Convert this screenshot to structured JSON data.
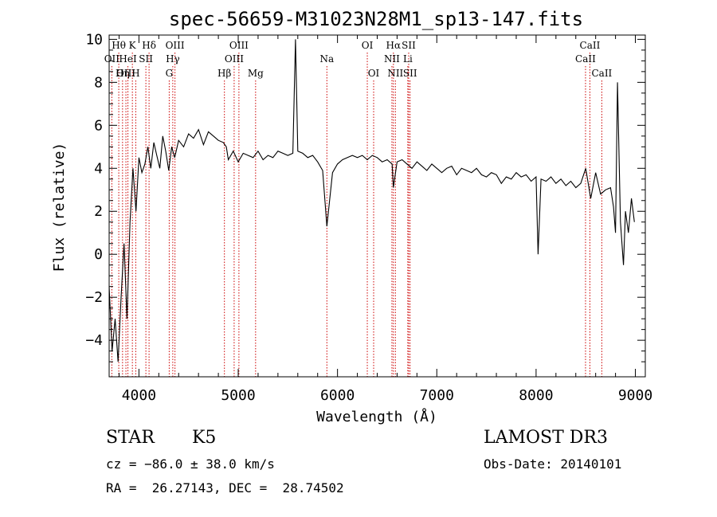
{
  "chart_data": {
    "type": "line",
    "title": "spec-56659-M31023N28M1_sp13-147.fits",
    "xlabel": "Wavelength (Å)",
    "ylabel": "Flux (relative)",
    "xlim": [
      3700,
      9100
    ],
    "ylim": [
      -5.7,
      10.2
    ],
    "xticks": [
      "4000",
      "5000",
      "6000",
      "7000",
      "8000",
      "9000"
    ],
    "yticks": [
      "−4",
      "−2",
      "0",
      "2",
      "4",
      "6",
      "8",
      "10"
    ],
    "series": [
      {
        "x": [
          3700,
          3730,
          3760,
          3790,
          3820,
          3850,
          3880,
          3910,
          3940,
          3970,
          4000,
          4030,
          4060,
          4090,
          4120,
          4150,
          4180,
          4210,
          4240,
          4270,
          4300,
          4330,
          4360,
          4400,
          4450,
          4500,
          4550,
          4600,
          4650,
          4700,
          4750,
          4800,
          4850,
          4880,
          4900,
          4950,
          5000,
          5050,
          5100,
          5150,
          5200,
          5250,
          5300,
          5350,
          5400,
          5450,
          5500,
          5550,
          5577,
          5600,
          5650,
          5700,
          5750,
          5800,
          5850,
          5893,
          5950,
          6000,
          6050,
          6100,
          6150,
          6200,
          6250,
          6300,
          6350,
          6400,
          6450,
          6500,
          6550,
          6563,
          6600,
          6650,
          6700,
          6750,
          6800,
          6850,
          6900,
          6950,
          7000,
          7050,
          7100,
          7150,
          7200,
          7250,
          7300,
          7350,
          7400,
          7450,
          7500,
          7550,
          7600,
          7650,
          7700,
          7750,
          7800,
          7850,
          7900,
          7950,
          8000,
          8020,
          8050,
          8100,
          8150,
          8200,
          8250,
          8300,
          8350,
          8400,
          8450,
          8500,
          8550,
          8600,
          8650,
          8700,
          8750,
          8780,
          8800,
          8820,
          8850,
          8880,
          8900,
          8930,
          8960,
          8990
        ],
        "y": [
          -1.5,
          -4.5,
          -3.0,
          -5.0,
          -2.0,
          0.5,
          -3.0,
          1.5,
          4.0,
          2.0,
          4.5,
          3.8,
          4.2,
          5.0,
          4.0,
          5.2,
          4.6,
          4.0,
          5.5,
          4.8,
          3.9,
          5.0,
          4.5,
          5.3,
          5.0,
          5.6,
          5.4,
          5.8,
          5.1,
          5.7,
          5.5,
          5.3,
          5.2,
          5.0,
          4.4,
          4.8,
          4.3,
          4.7,
          4.6,
          4.5,
          4.8,
          4.4,
          4.6,
          4.5,
          4.8,
          4.7,
          4.6,
          4.7,
          10.0,
          4.8,
          4.7,
          4.5,
          4.6,
          4.3,
          3.9,
          1.3,
          3.8,
          4.2,
          4.4,
          4.5,
          4.6,
          4.5,
          4.6,
          4.4,
          4.6,
          4.5,
          4.3,
          4.4,
          4.2,
          3.1,
          4.3,
          4.4,
          4.2,
          4.0,
          4.3,
          4.1,
          3.9,
          4.2,
          4.0,
          3.8,
          4.0,
          4.1,
          3.7,
          4.0,
          3.9,
          3.8,
          4.0,
          3.7,
          3.6,
          3.8,
          3.7,
          3.3,
          3.6,
          3.5,
          3.8,
          3.6,
          3.7,
          3.4,
          3.6,
          0.0,
          3.5,
          3.4,
          3.6,
          3.3,
          3.5,
          3.2,
          3.4,
          3.1,
          3.3,
          4.0,
          2.6,
          3.8,
          2.8,
          3.0,
          3.1,
          2.2,
          1.0,
          8.0,
          1.5,
          -0.5,
          2.0,
          1.0,
          2.6,
          1.5
        ]
      }
    ],
    "lines": [
      {
        "label": "Hθ",
        "x": 3797,
        "row": 1
      },
      {
        "label": "OII",
        "x": 3727,
        "row": 2
      },
      {
        "label": "OIII",
        "x": 3869,
        "row": 3
      },
      {
        "label": "K",
        "x": 3934,
        "row": 1
      },
      {
        "label": "HeI",
        "x": 3889,
        "row": 2
      },
      {
        "label": "Hη",
        "x": 3835,
        "row": 3
      },
      {
        "label": "SII",
        "x": 4070,
        "row": 2
      },
      {
        "label": "H",
        "x": 3968,
        "row": 3
      },
      {
        "label": "Hδ",
        "x": 4102,
        "row": 1
      },
      {
        "label": "OIII",
        "x": 4363,
        "row": 1
      },
      {
        "label": "Hγ",
        "x": 4341,
        "row": 2
      },
      {
        "label": "G",
        "x": 4305,
        "row": 3
      },
      {
        "label": "OIII",
        "x": 5007,
        "row": 1
      },
      {
        "label": "OIII",
        "x": 4959,
        "row": 2
      },
      {
        "label": "Hβ",
        "x": 4861,
        "row": 3
      },
      {
        "label": "Mg",
        "x": 5175,
        "row": 3
      },
      {
        "label": "Na",
        "x": 5893,
        "row": 2
      },
      {
        "label": "OI",
        "x": 6300,
        "row": 1
      },
      {
        "label": "OI",
        "x": 6364,
        "row": 3
      },
      {
        "label": "Hα",
        "x": 6563,
        "row": 1
      },
      {
        "label": "SII",
        "x": 6717,
        "row": 1
      },
      {
        "label": "NII",
        "x": 6548,
        "row": 2
      },
      {
        "label": "Li",
        "x": 6708,
        "row": 2
      },
      {
        "label": "NII",
        "x": 6583,
        "row": 3
      },
      {
        "label": "SII",
        "x": 6731,
        "row": 3
      },
      {
        "label": "CaII",
        "x": 8542,
        "row": 1
      },
      {
        "label": "CaII",
        "x": 8498,
        "row": 2
      },
      {
        "label": "CaII",
        "x": 8662,
        "row": 3
      }
    ]
  },
  "info": {
    "class": "STAR",
    "subclass": "K5",
    "survey": "LAMOST DR3",
    "cz": "cz = −86.0 ± 38.0 km/s",
    "obsdate": "Obs-Date: 20140101",
    "radec": "RA =  26.27143, DEC =  28.74502"
  },
  "colors": {
    "spectrum": "#000000",
    "line_marker": "#cc0000",
    "axes": "#000000"
  }
}
